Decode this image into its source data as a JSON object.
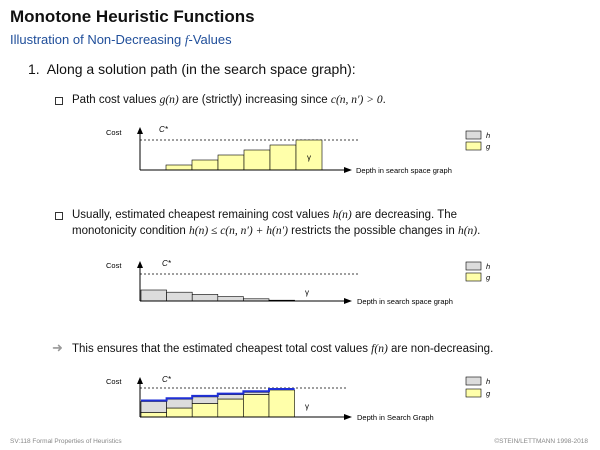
{
  "slide": {
    "title": "Monotone Heuristic Functions",
    "subtitle_prefix": "Illustration of Non-Decreasing ",
    "subtitle_f": "f",
    "subtitle_suffix": "-Values"
  },
  "item1": {
    "number": "1.",
    "text": "Along a solution path (in the search space graph):"
  },
  "bullet1": {
    "t1": "Path cost values ",
    "m1": "g(n)",
    "t2": " are (strictly) increasing since ",
    "m2": "c(n, n′) > 0",
    "t3": "."
  },
  "bullet2": {
    "line1_t1": "Usually, estimated cheapest remaining cost values ",
    "line1_m1": "h(n)",
    "line1_t2": " are decreasing. The",
    "line2_t1": "monotonicity condition ",
    "line2_m1": "h(n) ≤ c(n, n′) + h(n′)",
    "line2_t2": " restricts the possible changes in ",
    "line2_m2": "h(n)",
    "line2_t3": "."
  },
  "conclusion": {
    "t1": "This ensures that the estimated cheapest total cost values ",
    "m1": "f(n)",
    "t2": " are non-decreasing."
  },
  "diagrams": {
    "cost_label": "Cost",
    "cstar_label": "C*",
    "gamma_label": "γ",
    "legend_h": "h",
    "legend_g": "g",
    "xlabel_1": "Depth in search space graph",
    "xlabel_2": "Depth in search space graph",
    "xlabel_3": "Depth in Search Graph",
    "g_values": [
      1,
      2,
      3,
      4,
      5,
      6
    ],
    "h_values": [
      5,
      4,
      3,
      2,
      1,
      0
    ],
    "colors": {
      "g_fill": "#ffffaa",
      "h_fill": "#dcdcdc",
      "f_line": "#1f2fd6"
    }
  },
  "footer": {
    "left": "SV:118   Formal Properties of Heuristics",
    "right": "©STEIN/LETTMANN 1998-2018"
  }
}
